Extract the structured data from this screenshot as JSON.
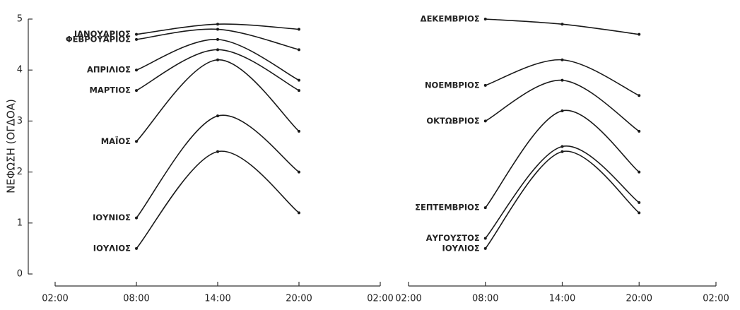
{
  "chart_data": [
    {
      "type": "line",
      "ylabel": "ΝΕΦΩΣΗ (ΟΓΔΟΑ)",
      "color": "#1a1a1a",
      "categories": [
        "02:00",
        "08:00",
        "14:00",
        "20:00",
        "02:00"
      ],
      "ylim": [
        0,
        5
      ],
      "yticks": [
        0,
        1,
        2,
        3,
        4,
        5
      ],
      "series": [
        {
          "name": "ΙΑΝΟΥΑΡΙΟΣ",
          "values": [
            null,
            4.7,
            4.9,
            4.8,
            null
          ]
        },
        {
          "name": "ΦΕΒΡΟΥΑΡΙΟΣ",
          "values": [
            null,
            4.6,
            4.8,
            4.4,
            null
          ]
        },
        {
          "name": "ΑΠΡΙΛΙΟΣ",
          "values": [
            null,
            4.0,
            4.6,
            3.8,
            null
          ]
        },
        {
          "name": "ΜΑΡΤΙΟΣ",
          "values": [
            null,
            3.6,
            4.4,
            3.6,
            null
          ]
        },
        {
          "name": "ΜΑΪΟΣ",
          "values": [
            null,
            2.6,
            4.2,
            2.8,
            null
          ]
        },
        {
          "name": "ΙΟΥΝΙΟΣ",
          "values": [
            null,
            1.1,
            3.1,
            2.0,
            null
          ]
        },
        {
          "name": "ΙΟΥΛΙΟΣ",
          "values": [
            null,
            0.5,
            2.4,
            1.2,
            null
          ]
        }
      ]
    },
    {
      "type": "line",
      "color": "#1a1a1a",
      "categories": [
        "02:00",
        "08:00",
        "14:00",
        "20:00",
        "02:00"
      ],
      "ylim": [
        0,
        5
      ],
      "series": [
        {
          "name": "ΔΕΚΕΜΒΡΙΟΣ",
          "values": [
            null,
            5.0,
            4.9,
            4.7,
            null
          ]
        },
        {
          "name": "ΝΟΕΜΒΡΙΟΣ",
          "values": [
            null,
            3.7,
            4.2,
            3.5,
            null
          ]
        },
        {
          "name": "ΟΚΤΩΒΡΙΟΣ",
          "values": [
            null,
            3.0,
            3.8,
            2.8,
            null
          ]
        },
        {
          "name": "ΣΕΠΤΕΜΒΡΙΟΣ",
          "values": [
            null,
            1.3,
            3.2,
            2.0,
            null
          ]
        },
        {
          "name": "ΑΥΓΟΥΣΤΟΣ",
          "values": [
            null,
            0.7,
            2.5,
            1.4,
            null
          ]
        },
        {
          "name": "ΙΟΥΛΙΟΣ",
          "values": [
            null,
            0.5,
            2.4,
            1.2,
            null
          ]
        }
      ]
    }
  ]
}
